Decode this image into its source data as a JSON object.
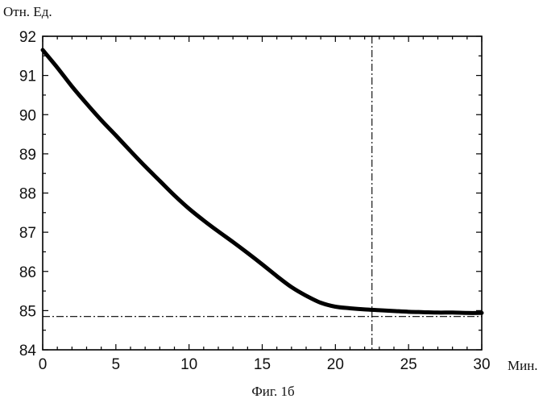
{
  "chart_data": {
    "type": "line",
    "xlabel": "Мин.",
    "ylabel": "Отн. Ед.",
    "caption": "Фиг. 1б",
    "xlim": [
      0,
      30
    ],
    "ylim": [
      84,
      92
    ],
    "x_ticks": [
      0,
      5,
      10,
      15,
      20,
      25,
      30
    ],
    "y_ticks": [
      84,
      85,
      86,
      87,
      88,
      89,
      90,
      91,
      92
    ],
    "x_minor_step": 1,
    "y_minor_step": 0.5,
    "grid": false,
    "series": [
      {
        "x": [
          0,
          1,
          2,
          3,
          4,
          5,
          6,
          7,
          8,
          9,
          10,
          11,
          12,
          13,
          14,
          15,
          16,
          17,
          18,
          19,
          20,
          21,
          22,
          23,
          24,
          25,
          26,
          27,
          28,
          29,
          30
        ],
        "y": [
          91.65,
          91.2,
          90.72,
          90.28,
          89.86,
          89.47,
          89.07,
          88.68,
          88.31,
          87.94,
          87.6,
          87.3,
          87.02,
          86.75,
          86.47,
          86.18,
          85.88,
          85.6,
          85.38,
          85.2,
          85.1,
          85.06,
          85.03,
          85.01,
          84.99,
          84.97,
          84.96,
          84.95,
          84.95,
          84.94,
          84.94
        ],
        "color": "#000000"
      }
    ],
    "reference_lines": [
      {
        "orientation": "vertical",
        "value": 22.5,
        "style": "dash-dot"
      },
      {
        "orientation": "horizontal",
        "value": 84.85,
        "style": "dash-dot"
      }
    ]
  }
}
